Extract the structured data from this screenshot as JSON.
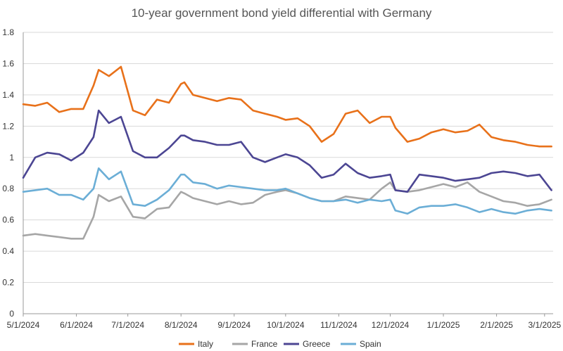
{
  "chart_data": {
    "type": "line",
    "title": "10-year government bond yield differential with Germany",
    "xlabel": "",
    "ylabel": "",
    "ylim": [
      0,
      1.8
    ],
    "y_ticks": [
      "0",
      "0.2",
      "0.4",
      "0.6",
      "0.8",
      "1",
      "1.2",
      "1.4",
      "1.6",
      "1.8"
    ],
    "x_tick_labels": [
      "5/1/2024",
      "6/1/2024",
      "7/1/2024",
      "8/1/2024",
      "9/1/2024",
      "10/1/2024",
      "11/1/2024",
      "12/1/2024",
      "1/1/2025",
      "2/1/2025",
      "3/1/2025"
    ],
    "legend_position": "bottom",
    "x_dates": [
      "2024-05-01",
      "2024-05-08",
      "2024-05-15",
      "2024-05-22",
      "2024-05-29",
      "2024-06-05",
      "2024-06-11",
      "2024-06-14",
      "2024-06-20",
      "2024-06-27",
      "2024-07-04",
      "2024-07-11",
      "2024-07-18",
      "2024-07-25",
      "2024-08-01",
      "2024-08-03",
      "2024-08-08",
      "2024-08-15",
      "2024-08-22",
      "2024-08-29",
      "2024-09-05",
      "2024-09-12",
      "2024-09-19",
      "2024-09-26",
      "2024-10-01",
      "2024-10-08",
      "2024-10-15",
      "2024-10-22",
      "2024-10-29",
      "2024-11-05",
      "2024-11-12",
      "2024-11-19",
      "2024-11-26",
      "2024-12-01",
      "2024-12-04",
      "2024-12-11",
      "2024-12-18",
      "2024-12-25",
      "2025-01-01",
      "2025-01-08",
      "2025-01-15",
      "2025-01-22",
      "2025-01-29",
      "2025-02-05",
      "2025-02-12",
      "2025-02-19",
      "2025-02-26",
      "2025-03-05"
    ],
    "series": [
      {
        "name": "Italy",
        "color": "#e8711a",
        "values": [
          1.34,
          1.33,
          1.35,
          1.29,
          1.31,
          1.31,
          1.46,
          1.56,
          1.52,
          1.58,
          1.3,
          1.27,
          1.37,
          1.35,
          1.47,
          1.48,
          1.4,
          1.38,
          1.36,
          1.38,
          1.37,
          1.3,
          1.28,
          1.26,
          1.24,
          1.25,
          1.2,
          1.1,
          1.15,
          1.28,
          1.3,
          1.22,
          1.26,
          1.26,
          1.19,
          1.1,
          1.12,
          1.16,
          1.18,
          1.16,
          1.17,
          1.21,
          1.13,
          1.11,
          1.1,
          1.08,
          1.07,
          1.07
        ]
      },
      {
        "name": "France",
        "color": "#a6a6a6",
        "values": [
          0.5,
          0.51,
          0.5,
          0.49,
          0.48,
          0.48,
          0.62,
          0.76,
          0.72,
          0.75,
          0.62,
          0.61,
          0.67,
          0.68,
          0.78,
          0.77,
          0.74,
          0.72,
          0.7,
          0.72,
          0.7,
          0.71,
          0.76,
          0.78,
          0.79,
          0.77,
          0.74,
          0.72,
          0.72,
          0.75,
          0.74,
          0.73,
          0.8,
          0.84,
          0.79,
          0.78,
          0.79,
          0.81,
          0.83,
          0.81,
          0.84,
          0.78,
          0.75,
          0.72,
          0.71,
          0.69,
          0.7,
          0.73
        ]
      },
      {
        "name": "Greece",
        "color": "#4c4693",
        "values": [
          0.87,
          1.0,
          1.03,
          1.02,
          0.98,
          1.03,
          1.13,
          1.3,
          1.22,
          1.26,
          1.04,
          1.0,
          1.0,
          1.06,
          1.14,
          1.14,
          1.11,
          1.1,
          1.08,
          1.08,
          1.1,
          1.0,
          0.97,
          1.0,
          1.02,
          1.0,
          0.95,
          0.87,
          0.89,
          0.96,
          0.9,
          0.87,
          0.88,
          0.89,
          0.79,
          0.78,
          0.89,
          0.88,
          0.87,
          0.85,
          0.86,
          0.87,
          0.9,
          0.91,
          0.9,
          0.88,
          0.89,
          0.79
        ]
      },
      {
        "name": "Spain",
        "color": "#6baed6",
        "values": [
          0.78,
          0.79,
          0.8,
          0.76,
          0.76,
          0.73,
          0.8,
          0.93,
          0.86,
          0.91,
          0.7,
          0.69,
          0.73,
          0.79,
          0.89,
          0.89,
          0.84,
          0.83,
          0.8,
          0.82,
          0.81,
          0.8,
          0.79,
          0.79,
          0.8,
          0.77,
          0.74,
          0.72,
          0.72,
          0.73,
          0.71,
          0.73,
          0.72,
          0.73,
          0.66,
          0.64,
          0.68,
          0.69,
          0.69,
          0.7,
          0.68,
          0.65,
          0.67,
          0.65,
          0.64,
          0.66,
          0.67,
          0.66
        ]
      }
    ]
  }
}
